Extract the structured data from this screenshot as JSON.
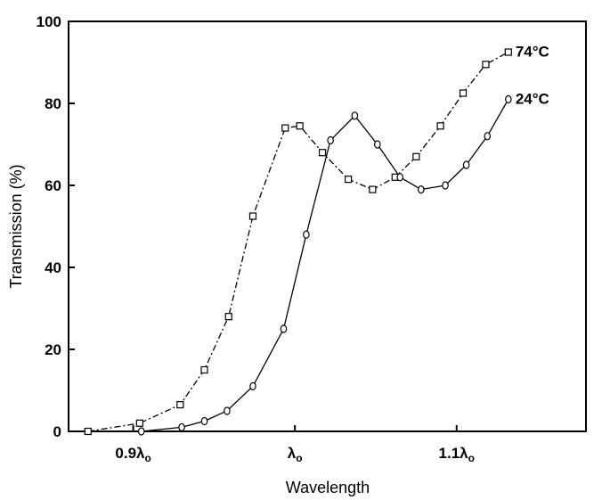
{
  "chart_data": {
    "type": "line",
    "title": "",
    "xlabel": "Wavelength",
    "ylabel": "Transmission (%)",
    "ylim": [
      0,
      100
    ],
    "xlim": [
      0.86,
      1.18
    ],
    "y_ticks": [
      0,
      20,
      40,
      60,
      80,
      100
    ],
    "x_ticks": [
      {
        "value": 0.9,
        "label": "0.9",
        "sub": "o"
      },
      {
        "value": 1.0,
        "label": "",
        "sub": "o"
      },
      {
        "value": 1.1,
        "label": "1.1",
        "sub": "o"
      }
    ],
    "x_tick_symbol": "λ",
    "grid": false,
    "series": [
      {
        "name": "74°C",
        "marker": "square",
        "line_style": "dash-dot",
        "x": [
          0.872,
          0.904,
          0.929,
          0.944,
          0.959,
          0.974,
          0.994,
          1.003,
          1.017,
          1.033,
          1.048,
          1.062,
          1.075,
          1.09,
          1.104,
          1.118,
          1.132
        ],
        "y": [
          0,
          2,
          6.5,
          15,
          28,
          52.5,
          74,
          74.5,
          68,
          61.5,
          59,
          62,
          67,
          74.5,
          82.5,
          89.5,
          92.5
        ]
      },
      {
        "name": "24°C",
        "marker": "circle",
        "line_style": "solid",
        "x": [
          0.905,
          0.93,
          0.944,
          0.958,
          0.974,
          0.993,
          1.007,
          1.022,
          1.037,
          1.051,
          1.065,
          1.078,
          1.093,
          1.106,
          1.119,
          1.132
        ],
        "y": [
          0,
          1,
          2.5,
          5,
          11,
          25,
          48,
          71,
          77,
          70,
          62,
          59,
          60,
          65,
          72,
          81
        ]
      }
    ]
  }
}
